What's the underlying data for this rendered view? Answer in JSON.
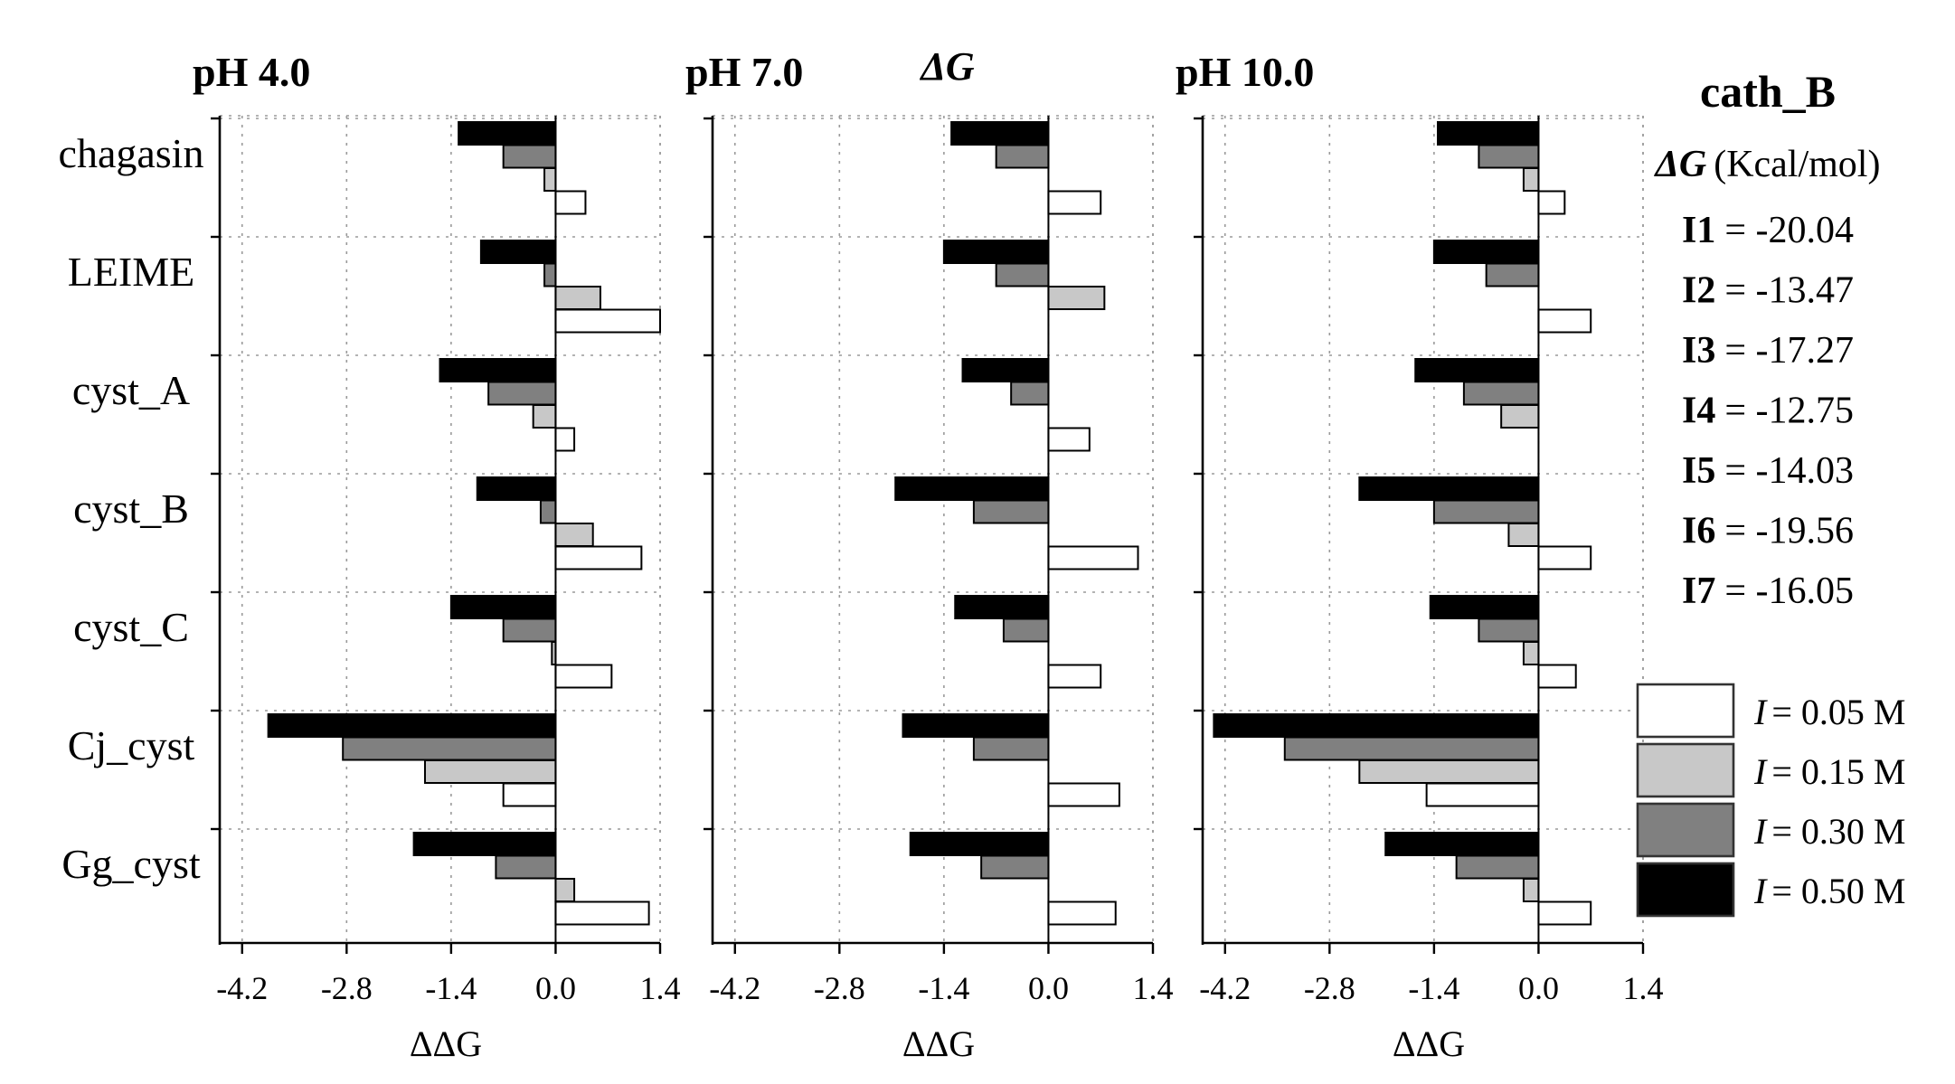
{
  "chart_data": {
    "type": "bar",
    "orientation": "horizontal",
    "title": "ΔG",
    "xlabel": "ΔΔG",
    "xlim": [
      -4.5,
      1.4
    ],
    "xticks": [
      "-4.2",
      "-2.8",
      "-1.4",
      "0.0",
      "1.4"
    ],
    "categories": [
      "chagasin",
      "LEIME",
      "cyst_A",
      "cyst_B",
      "cyst_C",
      "Cj_cyst",
      "Gg_cyst"
    ],
    "series_colors": {
      "I = 0.50 M": "#000000",
      "I = 0.30 M": "#808080",
      "I = 0.15 M": "#c8c8c8",
      "I = 0.05 M": "#ffffff"
    },
    "panels": [
      {
        "title": "pH 4.0",
        "series": [
          {
            "name": "I = 0.50 M",
            "values": [
              -1.3,
              -1.0,
              -1.55,
              -1.05,
              -1.4,
              -3.85,
              -1.9
            ]
          },
          {
            "name": "I = 0.30 M",
            "values": [
              -0.7,
              -0.15,
              -0.9,
              -0.2,
              -0.7,
              -2.85,
              -0.8
            ]
          },
          {
            "name": "I = 0.15 M",
            "values": [
              -0.15,
              0.6,
              -0.3,
              0.5,
              -0.05,
              -1.75,
              0.25
            ]
          },
          {
            "name": "I = 0.05 M",
            "values": [
              0.4,
              1.4,
              0.25,
              1.15,
              0.75,
              -0.7,
              1.25
            ]
          }
        ]
      },
      {
        "title": "pH 7.0",
        "series": [
          {
            "name": "I = 0.50 M",
            "values": [
              -1.3,
              -1.4,
              -1.15,
              -2.05,
              -1.25,
              -1.95,
              -1.85
            ]
          },
          {
            "name": "I = 0.30 M",
            "values": [
              -0.7,
              -0.7,
              -0.5,
              -1.0,
              -0.6,
              -1.0,
              -0.9
            ]
          },
          {
            "name": "I = 0.15 M",
            "values": [
              0.0,
              0.75,
              0.0,
              0.0,
              0.0,
              0.0,
              0.0
            ]
          },
          {
            "name": "I = 0.05 M",
            "values": [
              0.7,
              0.0,
              0.55,
              1.2,
              0.7,
              0.95,
              0.9
            ]
          }
        ]
      },
      {
        "title": "pH 10.0",
        "series": [
          {
            "name": "I = 0.50 M",
            "values": [
              -1.35,
              -1.4,
              -1.65,
              -2.4,
              -1.45,
              -4.35,
              -2.05
            ]
          },
          {
            "name": "I = 0.30 M",
            "values": [
              -0.8,
              -0.7,
              -1.0,
              -1.4,
              -0.8,
              -3.4,
              -1.1
            ]
          },
          {
            "name": "I = 0.15 M",
            "values": [
              -0.2,
              0.0,
              -0.5,
              -0.4,
              -0.2,
              -2.4,
              -0.2
            ]
          },
          {
            "name": "I = 0.05 M",
            "values": [
              0.35,
              0.7,
              0.0,
              0.7,
              0.5,
              -1.5,
              0.7
            ]
          }
        ]
      }
    ],
    "side_panel": {
      "title": "cath_B",
      "subtitle_symbol": "ΔG",
      "subtitle_unit": "(Kcal/mol)",
      "entries": [
        {
          "label": "I1",
          "value": "= -20.04"
        },
        {
          "label": "I2",
          "value": "= -13.47"
        },
        {
          "label": "I3",
          "value": "= -17.27"
        },
        {
          "label": "I4",
          "value": "= -12.75"
        },
        {
          "label": "I5",
          "value": "= -14.03"
        },
        {
          "label": "I6",
          "value": "= -19.56"
        },
        {
          "label": "I7",
          "value": "= -16.05"
        }
      ]
    },
    "legend": {
      "placement": "bottom-right",
      "items": [
        {
          "symbol": "I",
          "text": "= 0.05 M",
          "color": "#ffffff"
        },
        {
          "symbol": "I",
          "text": "= 0.15 M",
          "color": "#c8c8c8"
        },
        {
          "symbol": "I",
          "text": "= 0.30 M",
          "color": "#808080"
        },
        {
          "symbol": "I",
          "text": "= 0.50 M",
          "color": "#000000"
        }
      ]
    }
  }
}
